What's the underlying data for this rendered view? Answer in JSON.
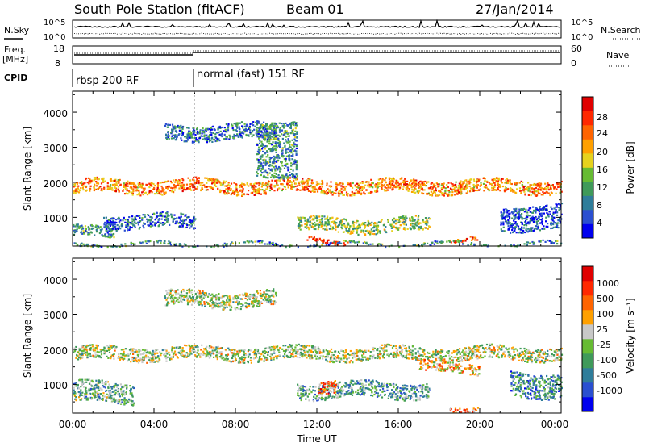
{
  "header": {
    "station": "South Pole Station (fitACF)",
    "beam": "Beam 01",
    "date": "27/Jan/2014"
  },
  "strip": {
    "nsky_label": "N.Sky",
    "nsearch_label": "N.Search",
    "nave_label": "Nave",
    "freq_label_1": "Freq.",
    "freq_label_2": "[MHz]",
    "cpid_label": "CPID",
    "freq_ticks": [
      "18",
      "8"
    ],
    "nave_ticks": [
      "60",
      "0"
    ],
    "nsky_ticks": [
      "10^5",
      "10^0"
    ],
    "nsearch_ticks": [
      "10^5",
      "10^0"
    ],
    "cpid_segments": [
      {
        "name": "rbsp 200 RF",
        "start_h": 0
      },
      {
        "name": "normal (fast) 151 RF",
        "start_h": 6.0
      }
    ]
  },
  "chart_data": [
    {
      "type": "heatmap",
      "panel": "power",
      "title": "",
      "xlabel": "Time UT",
      "ylabel": "Slant Range [km]",
      "x_ticks": [
        "00:00",
        "04:00",
        "08:00",
        "12:00",
        "16:00",
        "20:00",
        "00:00"
      ],
      "xlim_hours": [
        0,
        24
      ],
      "y_ticks": [
        1000,
        2000,
        3000,
        4000
      ],
      "ylim": [
        180,
        4600
      ],
      "colorbar": {
        "label": "Power [dB]",
        "ticks": [
          "28",
          "24",
          "20",
          "16",
          "12",
          "8",
          "4"
        ],
        "colors": [
          "#0000ee",
          "#2a4fd0",
          "#2f7d9a",
          "#3f9a5a",
          "#66bb33",
          "#e6d21e",
          "#ffa000",
          "#ff6400",
          "#ff2800",
          "#e00000"
        ]
      },
      "scatter_regions": [
        {
          "t_start": 0.0,
          "t_end": 24.0,
          "range_center": 1900,
          "range_width": 380,
          "level": 0.7
        },
        {
          "t_start": 0.0,
          "t_end": 2.0,
          "range_center": 600,
          "range_width": 300,
          "level": 0.3
        },
        {
          "t_start": 1.5,
          "t_end": 6.0,
          "range_center": 900,
          "range_width": 400,
          "level": 0.2
        },
        {
          "t_start": 4.5,
          "t_end": 10.0,
          "range_center": 3450,
          "range_width": 450,
          "level": 0.25
        },
        {
          "t_start": 9.0,
          "t_end": 11.0,
          "range_center": 3000,
          "range_width": 1600,
          "level": 0.3
        },
        {
          "t_start": 11.0,
          "t_end": 17.5,
          "range_center": 800,
          "range_width": 400,
          "level": 0.45
        },
        {
          "t_start": 11.5,
          "t_end": 13.5,
          "range_center": 350,
          "range_width": 120,
          "level": 0.9
        },
        {
          "t_start": 18.5,
          "t_end": 20.0,
          "range_center": 350,
          "range_width": 120,
          "level": 0.8
        },
        {
          "t_start": 21.0,
          "t_end": 24.0,
          "range_center": 1000,
          "range_width": 700,
          "level": 0.15
        },
        {
          "t_start": 0.0,
          "t_end": 24.0,
          "range_center": 250,
          "range_width": 90,
          "level": 0.3
        }
      ]
    },
    {
      "type": "heatmap",
      "panel": "velocity",
      "title": "",
      "xlabel": "Time UT",
      "ylabel": "Slant Range [km]",
      "x_ticks": [
        "00:00",
        "04:00",
        "08:00",
        "12:00",
        "16:00",
        "20:00",
        "00:00"
      ],
      "xlim_hours": [
        0,
        24
      ],
      "y_ticks": [
        1000,
        2000,
        3000,
        4000
      ],
      "ylim": [
        180,
        4600
      ],
      "colorbar": {
        "label": "Velocity [m s⁻¹]",
        "ticks": [
          "1000",
          "500",
          "100",
          "25",
          "-25",
          "-100",
          "-500",
          "-1000"
        ],
        "colors": [
          "#0000ee",
          "#2a4fd0",
          "#2f7d9a",
          "#3f9a5a",
          "#66bb33",
          "#c8c8c8",
          "#ffa000",
          "#ff6400",
          "#ff2800",
          "#e00000"
        ]
      },
      "scatter_regions": [
        {
          "t_start": 0.0,
          "t_end": 24.0,
          "range_center": 1900,
          "range_width": 380,
          "level": 0.5
        },
        {
          "t_start": 4.5,
          "t_end": 10.0,
          "range_center": 3450,
          "range_width": 450,
          "level": 0.5
        },
        {
          "t_start": 11.0,
          "t_end": 17.5,
          "range_center": 850,
          "range_width": 450,
          "level": 0.35
        },
        {
          "t_start": 12.0,
          "t_end": 13.0,
          "range_center": 900,
          "range_width": 350,
          "level": 0.75
        },
        {
          "t_start": 17.0,
          "t_end": 20.0,
          "range_center": 1500,
          "range_width": 300,
          "level": 0.65
        },
        {
          "t_start": 18.5,
          "t_end": 20.0,
          "range_center": 350,
          "range_width": 120,
          "level": 0.7
        },
        {
          "t_start": 21.5,
          "t_end": 24.0,
          "range_center": 1000,
          "range_width": 700,
          "level": 0.3
        },
        {
          "t_start": 0.0,
          "t_end": 3.0,
          "range_center": 800,
          "range_width": 600,
          "level": 0.4
        }
      ]
    }
  ]
}
